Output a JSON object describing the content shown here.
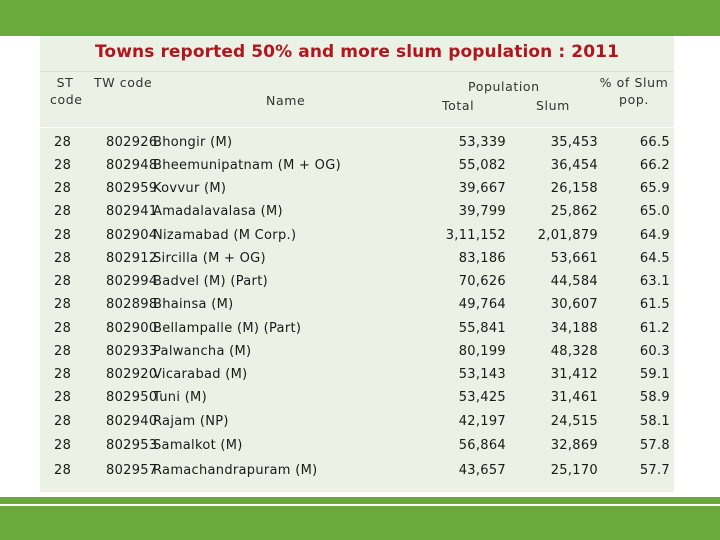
{
  "slide": {
    "title": "Towns reported 50% and more slum population : 2011"
  },
  "header": {
    "st_code": "ST code",
    "st_code_line1": "ST",
    "st_code_line2": "code",
    "tw_code": "TW code",
    "name": "Name",
    "population": "Population",
    "total": "Total",
    "slum": "Slum",
    "pct_line1": "% of Slum",
    "pct_line2": "pop."
  },
  "rows": [
    {
      "st": "28",
      "tw": "802926",
      "name": "Bhongir (M)",
      "total": "53,339",
      "slum": "35,453",
      "pct": "66.5"
    },
    {
      "st": "28",
      "tw": "802948",
      "name": "Bheemunipatnam (M + OG)",
      "total": "55,082",
      "slum": "36,454",
      "pct": "66.2"
    },
    {
      "st": "28",
      "tw": "802959",
      "name": "Kovvur (M)",
      "total": "39,667",
      "slum": "26,158",
      "pct": "65.9"
    },
    {
      "st": "28",
      "tw": "802941",
      "name": "Amadalavalasa (M)",
      "total": "39,799",
      "slum": "25,862",
      "pct": "65.0"
    },
    {
      "st": "28",
      "tw": "802904",
      "name": "Nizamabad (M Corp.)",
      "total": "3,11,152",
      "slum": "2,01,879",
      "pct": "64.9"
    },
    {
      "st": "28",
      "tw": "802912",
      "name": "Sircilla (M + OG)",
      "total": "83,186",
      "slum": "53,661",
      "pct": "64.5"
    },
    {
      "st": "28",
      "tw": "802994",
      "name": "Badvel (M) (Part)",
      "total": "70,626",
      "slum": "44,584",
      "pct": "63.1"
    },
    {
      "st": "28",
      "tw": "802898",
      "name": "Bhainsa (M)",
      "total": "49,764",
      "slum": "30,607",
      "pct": "61.5"
    },
    {
      "st": "28",
      "tw": "802900",
      "name": "Bellampalle (M) (Part)",
      "total": "55,841",
      "slum": "34,188",
      "pct": "61.2"
    },
    {
      "st": "28",
      "tw": "802933",
      "name": "Palwancha (M)",
      "total": "80,199",
      "slum": "48,328",
      "pct": "60.3"
    },
    {
      "st": "28",
      "tw": "802920",
      "name": "Vicarabad (M)",
      "total": "53,143",
      "slum": "31,412",
      "pct": "59.1"
    },
    {
      "st": "28",
      "tw": "802950",
      "name": "Tuni (M)",
      "total": "53,425",
      "slum": "31,461",
      "pct": "58.9"
    },
    {
      "st": "28",
      "tw": "802940",
      "name": "Rajam (NP)",
      "total": "42,197",
      "slum": "24,515",
      "pct": "58.1"
    },
    {
      "st": "28",
      "tw": "802953",
      "name": "Samalkot (M)",
      "total": "56,864",
      "slum": "32,869",
      "pct": "57.8"
    },
    {
      "st": "28",
      "tw": "802957",
      "name": "Ramachandrapuram (M)",
      "total": "43,657",
      "slum": "25,170",
      "pct": "57.7"
    }
  ],
  "colors": {
    "band": "#6aaa3c",
    "panel": "#ebf1e4",
    "title": "#b0161d"
  }
}
